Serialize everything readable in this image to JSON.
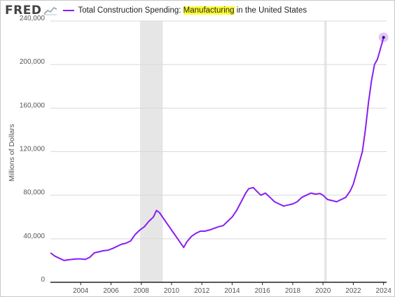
{
  "header": {
    "logo": "FRED",
    "logo_icon": "line-chart-icon",
    "title_prefix": "Total Construction Spending: ",
    "title_highlight": "Manufacturing",
    "title_suffix": " in the United States"
  },
  "colors": {
    "series": "#8a1ef0",
    "recession": "#e6e6e6",
    "grid": "#d9d9d9",
    "highlight": "#ffff33"
  },
  "chart_data": {
    "type": "line",
    "title": "Total Construction Spending: Manufacturing in the United States",
    "ylabel": "Millions of Dollars",
    "xlabel": "",
    "xlim": [
      2002.0,
      2024.2
    ],
    "ylim": [
      0,
      240000
    ],
    "x_ticks": [
      2004,
      2006,
      2008,
      2010,
      2012,
      2014,
      2016,
      2018,
      2020,
      2022,
      2024
    ],
    "x_tick_labels": [
      "2004",
      "2006",
      "2008",
      "2010",
      "2012",
      "2014",
      "2016",
      "2018",
      "2020",
      "2022",
      "2024"
    ],
    "y_ticks": [
      0,
      40000,
      80000,
      120000,
      160000,
      200000,
      240000
    ],
    "y_tick_labels": [
      "0",
      "40,000",
      "80,000",
      "120,000",
      "160,000",
      "200,000",
      "240,000"
    ],
    "grid": "horizontal",
    "recessions": [
      [
        2007.92,
        2009.42
      ],
      [
        2020.08,
        2020.25
      ]
    ],
    "series": [
      {
        "name": "Total Construction Spending: Manufacturing in the United States",
        "x": [
          2002.0,
          2002.3,
          2002.6,
          2002.9,
          2003.1,
          2003.4,
          2003.7,
          2004.0,
          2004.3,
          2004.6,
          2004.9,
          2005.2,
          2005.5,
          2005.8,
          2006.1,
          2006.4,
          2006.7,
          2007.0,
          2007.3,
          2007.6,
          2007.9,
          2008.2,
          2008.5,
          2008.8,
          2009.0,
          2009.2,
          2009.5,
          2009.8,
          2010.1,
          2010.4,
          2010.6,
          2010.8,
          2011.0,
          2011.3,
          2011.6,
          2011.9,
          2012.2,
          2012.5,
          2012.8,
          2013.1,
          2013.4,
          2013.7,
          2014.0,
          2014.3,
          2014.6,
          2014.9,
          2015.1,
          2015.4,
          2015.6,
          2015.9,
          2016.2,
          2016.5,
          2016.8,
          2017.1,
          2017.4,
          2017.7,
          2018.0,
          2018.3,
          2018.6,
          2018.9,
          2019.2,
          2019.5,
          2019.8,
          2020.0,
          2020.3,
          2020.6,
          2020.9,
          2021.2,
          2021.5,
          2021.8,
          2022.0,
          2022.2,
          2022.4,
          2022.6,
          2022.8,
          2023.0,
          2023.2,
          2023.4,
          2023.6,
          2023.8,
          2024.0
        ],
        "y": [
          27000,
          24000,
          22000,
          20000,
          20500,
          21000,
          21500,
          21500,
          21000,
          23000,
          27000,
          28000,
          29000,
          29500,
          31000,
          33000,
          35000,
          36000,
          38000,
          44000,
          48000,
          51000,
          56000,
          60000,
          66000,
          64000,
          58000,
          52000,
          46000,
          40000,
          36000,
          32000,
          37000,
          42000,
          45000,
          47000,
          47000,
          48000,
          49500,
          51000,
          52000,
          56000,
          60000,
          66000,
          74000,
          82000,
          86000,
          87000,
          84000,
          80000,
          82000,
          78000,
          74000,
          72000,
          70000,
          71000,
          72000,
          74000,
          78000,
          80000,
          82000,
          81000,
          81500,
          80000,
          76000,
          75000,
          74000,
          76000,
          78000,
          84000,
          90000,
          100000,
          110000,
          120000,
          140000,
          165000,
          185000,
          200000,
          205000,
          215000,
          225000
        ]
      }
    ]
  }
}
